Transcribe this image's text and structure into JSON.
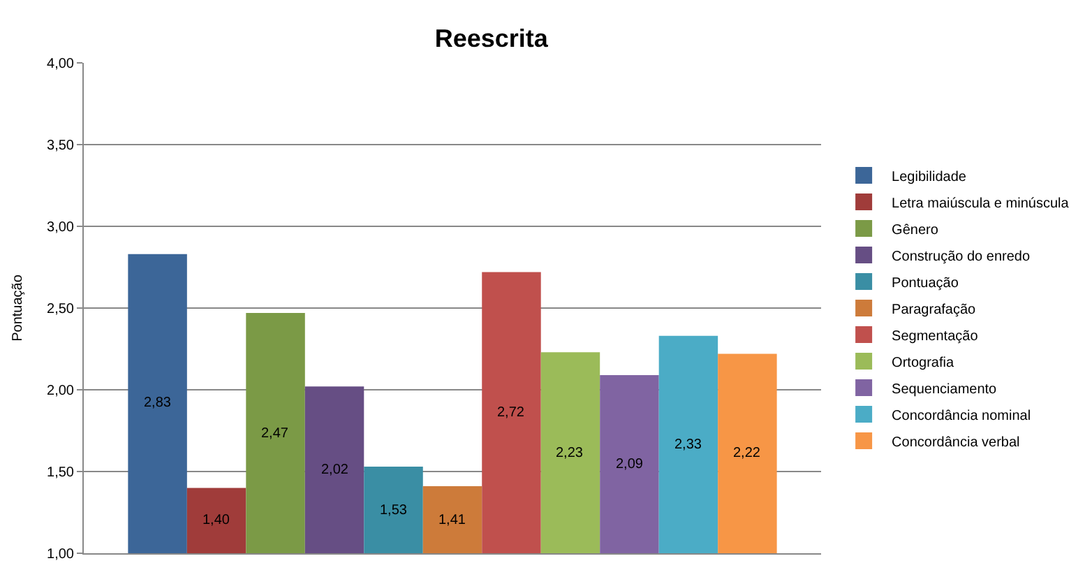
{
  "chart_data": {
    "type": "bar",
    "title": "Reescrita",
    "ylabel": "Pontuação",
    "categories": [
      null
    ],
    "series": [
      {
        "name": "Legibilidade",
        "color": "#3c6698",
        "values": [
          2.83
        ],
        "value_labels": [
          "2,83"
        ]
      },
      {
        "name": "Letra maiúscula e minúscula",
        "color": "#a03c3a",
        "values": [
          1.4
        ],
        "value_labels": [
          "1,40"
        ]
      },
      {
        "name": "Gênero",
        "color": "#7b9a46",
        "values": [
          2.47
        ],
        "value_labels": [
          "2,47"
        ]
      },
      {
        "name": "Construção do enredo",
        "color": "#664e84",
        "values": [
          2.02
        ],
        "value_labels": [
          "2,02"
        ]
      },
      {
        "name": "Pontuação",
        "color": "#3a8ea4",
        "values": [
          1.53
        ],
        "value_labels": [
          "1,53"
        ]
      },
      {
        "name": "Paragrafação",
        "color": "#cd7b3a",
        "values": [
          1.41
        ],
        "value_labels": [
          "1,41"
        ]
      },
      {
        "name": "Segmentação",
        "color": "#c0504d",
        "values": [
          2.72
        ],
        "value_labels": [
          "2,72"
        ]
      },
      {
        "name": "Ortografia",
        "color": "#9bbb59",
        "values": [
          2.23
        ],
        "value_labels": [
          "2,23"
        ]
      },
      {
        "name": "Sequenciamento",
        "color": "#8064a2",
        "values": [
          2.09
        ],
        "value_labels": [
          "2,09"
        ]
      },
      {
        "name": "Concordância nominal",
        "color": "#4bacc6",
        "values": [
          2.33
        ],
        "value_labels": [
          "2,33"
        ]
      },
      {
        "name": "Concordância verbal",
        "color": "#f79646",
        "values": [
          2.22
        ],
        "value_labels": [
          "2,22"
        ]
      }
    ],
    "ylim": [
      1,
      4
    ],
    "yticks": [
      {
        "value": 1,
        "label": "1,00"
      },
      {
        "value": 1.5,
        "label": "1,50"
      },
      {
        "value": 2,
        "label": "2,00"
      },
      {
        "value": 2.5,
        "label": "2,50"
      },
      {
        "value": 3,
        "label": "3,00"
      },
      {
        "value": 3.5,
        "label": "3,50"
      },
      {
        "value": 4,
        "label": "4,00"
      }
    ],
    "grid": "y",
    "legend": "right",
    "tick_labels": "y"
  }
}
